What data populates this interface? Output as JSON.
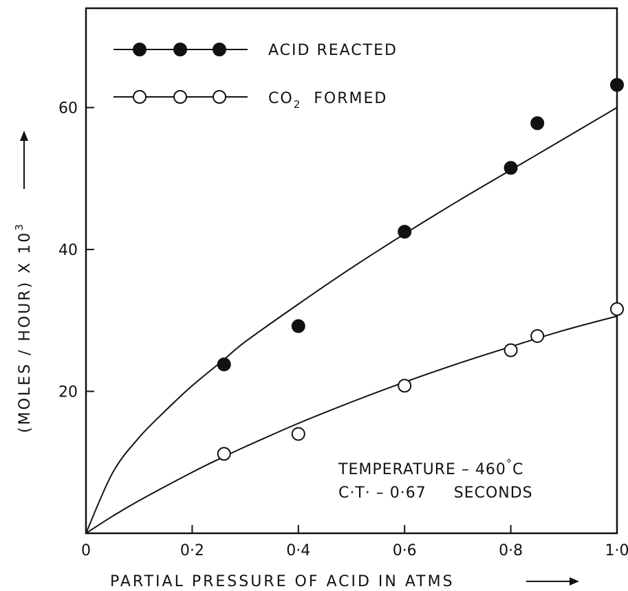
{
  "chart_data": {
    "type": "scatter",
    "xlabel": "PARTIAL PRESSURE OF ACID IN ATMS",
    "ylabel_parts": {
      "main": "(MOLES / HOUR) X 10",
      "sup": "3"
    },
    "xlim": [
      0,
      1.0
    ],
    "ylim": [
      0,
      74
    ],
    "x_ticks": [
      {
        "value": 0,
        "label": "0"
      },
      {
        "value": 0.2,
        "label": "0·2"
      },
      {
        "value": 0.4,
        "label": "0·4"
      },
      {
        "value": 0.6,
        "label": "0·6"
      },
      {
        "value": 0.8,
        "label": "0·8"
      },
      {
        "value": 1.0,
        "label": "1·0"
      }
    ],
    "y_ticks": [
      {
        "value": 20,
        "label": "20"
      },
      {
        "value": 40,
        "label": "40"
      },
      {
        "value": 60,
        "label": "60"
      }
    ],
    "grid": false,
    "legend_position": "top-left",
    "series": [
      {
        "name": "ACID REACTED",
        "marker": "filled-circle",
        "color": "#111111",
        "points": [
          {
            "x": 0.26,
            "y": 23.8
          },
          {
            "x": 0.4,
            "y": 29.2
          },
          {
            "x": 0.6,
            "y": 42.5
          },
          {
            "x": 0.8,
            "y": 51.5
          },
          {
            "x": 0.85,
            "y": 57.8
          },
          {
            "x": 1.0,
            "y": 63.2
          }
        ],
        "fit_curve": [
          {
            "x": 0,
            "y": 0
          },
          {
            "x": 0.05,
            "y": 8.5
          },
          {
            "x": 0.1,
            "y": 13.5
          },
          {
            "x": 0.15,
            "y": 17.3
          },
          {
            "x": 0.2,
            "y": 20.8
          },
          {
            "x": 0.26,
            "y": 24.5
          },
          {
            "x": 0.3,
            "y": 27.0
          },
          {
            "x": 0.4,
            "y": 32.3
          },
          {
            "x": 0.5,
            "y": 37.4
          },
          {
            "x": 0.6,
            "y": 42.2
          },
          {
            "x": 0.7,
            "y": 46.8
          },
          {
            "x": 0.8,
            "y": 51.2
          },
          {
            "x": 0.9,
            "y": 55.6
          },
          {
            "x": 1.0,
            "y": 60.0
          }
        ]
      },
      {
        "name": "CO₂ FORMED",
        "name_parts": {
          "main": "CO",
          "sub": "2",
          "rest": "FORMED"
        },
        "marker": "open-circle",
        "color": "#111111",
        "points": [
          {
            "x": 0.26,
            "y": 11.2
          },
          {
            "x": 0.4,
            "y": 14.0
          },
          {
            "x": 0.6,
            "y": 20.8
          },
          {
            "x": 0.8,
            "y": 25.8
          },
          {
            "x": 0.85,
            "y": 27.8
          },
          {
            "x": 1.0,
            "y": 31.6
          }
        ],
        "fit_curve": [
          {
            "x": 0,
            "y": 0
          },
          {
            "x": 0.05,
            "y": 2.4
          },
          {
            "x": 0.1,
            "y": 4.6
          },
          {
            "x": 0.2,
            "y": 8.6
          },
          {
            "x": 0.26,
            "y": 10.8
          },
          {
            "x": 0.3,
            "y": 12.2
          },
          {
            "x": 0.4,
            "y": 15.5
          },
          {
            "x": 0.5,
            "y": 18.5
          },
          {
            "x": 0.6,
            "y": 21.3
          },
          {
            "x": 0.7,
            "y": 23.9
          },
          {
            "x": 0.8,
            "y": 26.3
          },
          {
            "x": 0.9,
            "y": 28.6
          },
          {
            "x": 1.0,
            "y": 30.6
          }
        ]
      }
    ],
    "annotations": [
      {
        "label_parts": {
          "main": "TEMPERATURE – 460",
          "sup": "°",
          "rest": "C"
        }
      },
      {
        "text": "C·T· – 0·67     SECONDS"
      }
    ]
  }
}
